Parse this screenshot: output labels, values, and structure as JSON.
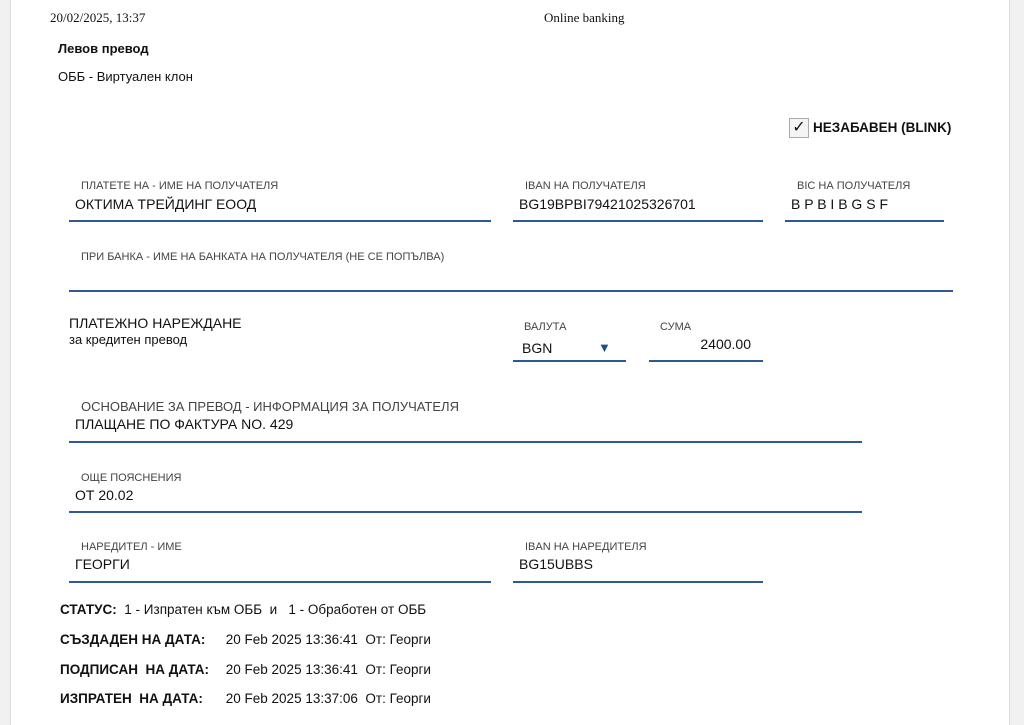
{
  "header": {
    "datetime": "20/02/2025, 13:37",
    "title": "Online banking"
  },
  "doc": {
    "title": "Левов превод",
    "branch": "ОББ - Виртуален клон"
  },
  "urgent": {
    "checked": true,
    "label": "НЕЗАБАВЕН (BLINK)"
  },
  "fields": {
    "beneficiary_name": {
      "label": "ПЛАТЕТЕ НА - ИМЕ НА ПОЛУЧАТЕЛЯ",
      "value": "ОКТИМА ТРЕЙДИНГ ЕООД"
    },
    "beneficiary_iban": {
      "label": "IBAN НА ПОЛУЧАТЕЛЯ",
      "value": "BG19BPBI79421025326701"
    },
    "beneficiary_bic": {
      "label": "BIC НА ПОЛУЧАТЕЛЯ",
      "value": "B P B I B G S F"
    },
    "bank_name": {
      "label": "ПРИ БАНКА - ИМЕ НА БАНКАТА НА ПОЛУЧАТЕЛЯ (НЕ СЕ ПОПЪЛВА)",
      "value": ""
    },
    "currency": {
      "label": "ВАЛУТА",
      "value": "BGN"
    },
    "amount": {
      "label": "СУМА",
      "value": "2400.00"
    },
    "reason": {
      "label": "ОСНОВАНИЕ ЗА ПРЕВОД - ИНФОРМАЦИЯ ЗА ПОЛУЧАТЕЛЯ",
      "value": "ПЛАЩАНЕ ПО ФАКТУРА NO. 429"
    },
    "details": {
      "label": "ОЩЕ ПОЯСНЕНИЯ",
      "value": "ОТ 20.02"
    },
    "orderer_name": {
      "label": "НАРЕДИТЕЛ - ИМЕ",
      "value": "ГЕОРГИ"
    },
    "orderer_iban": {
      "label": "IBAN НА НАРЕДИТЕЛЯ",
      "value": "BG15UBBS"
    }
  },
  "order_type": {
    "title": "ПЛАТЕЖНО НАРЕЖДАНЕ",
    "subtitle": "за кредитен превод"
  },
  "status": {
    "status_label": "СТАТУС:",
    "status_value": "1 - Изпратен към ОББ  и   1 - Обработен от ОББ",
    "created_label": "СЪЗДАДЕН НА ДАТА:",
    "created_value": "20 Feb 2025 13:36:41  От: Георги",
    "signed_label": "ПОДПИСАН  НА ДАТА:",
    "signed_value": "20 Feb 2025 13:36:41  От: Георги",
    "sent_label": "ИЗПРАТЕН  НА ДАТА:",
    "sent_value": "20 Feb 2025 13:37:06  От: Георги"
  },
  "colors": {
    "field_line": "#2b5a94"
  }
}
